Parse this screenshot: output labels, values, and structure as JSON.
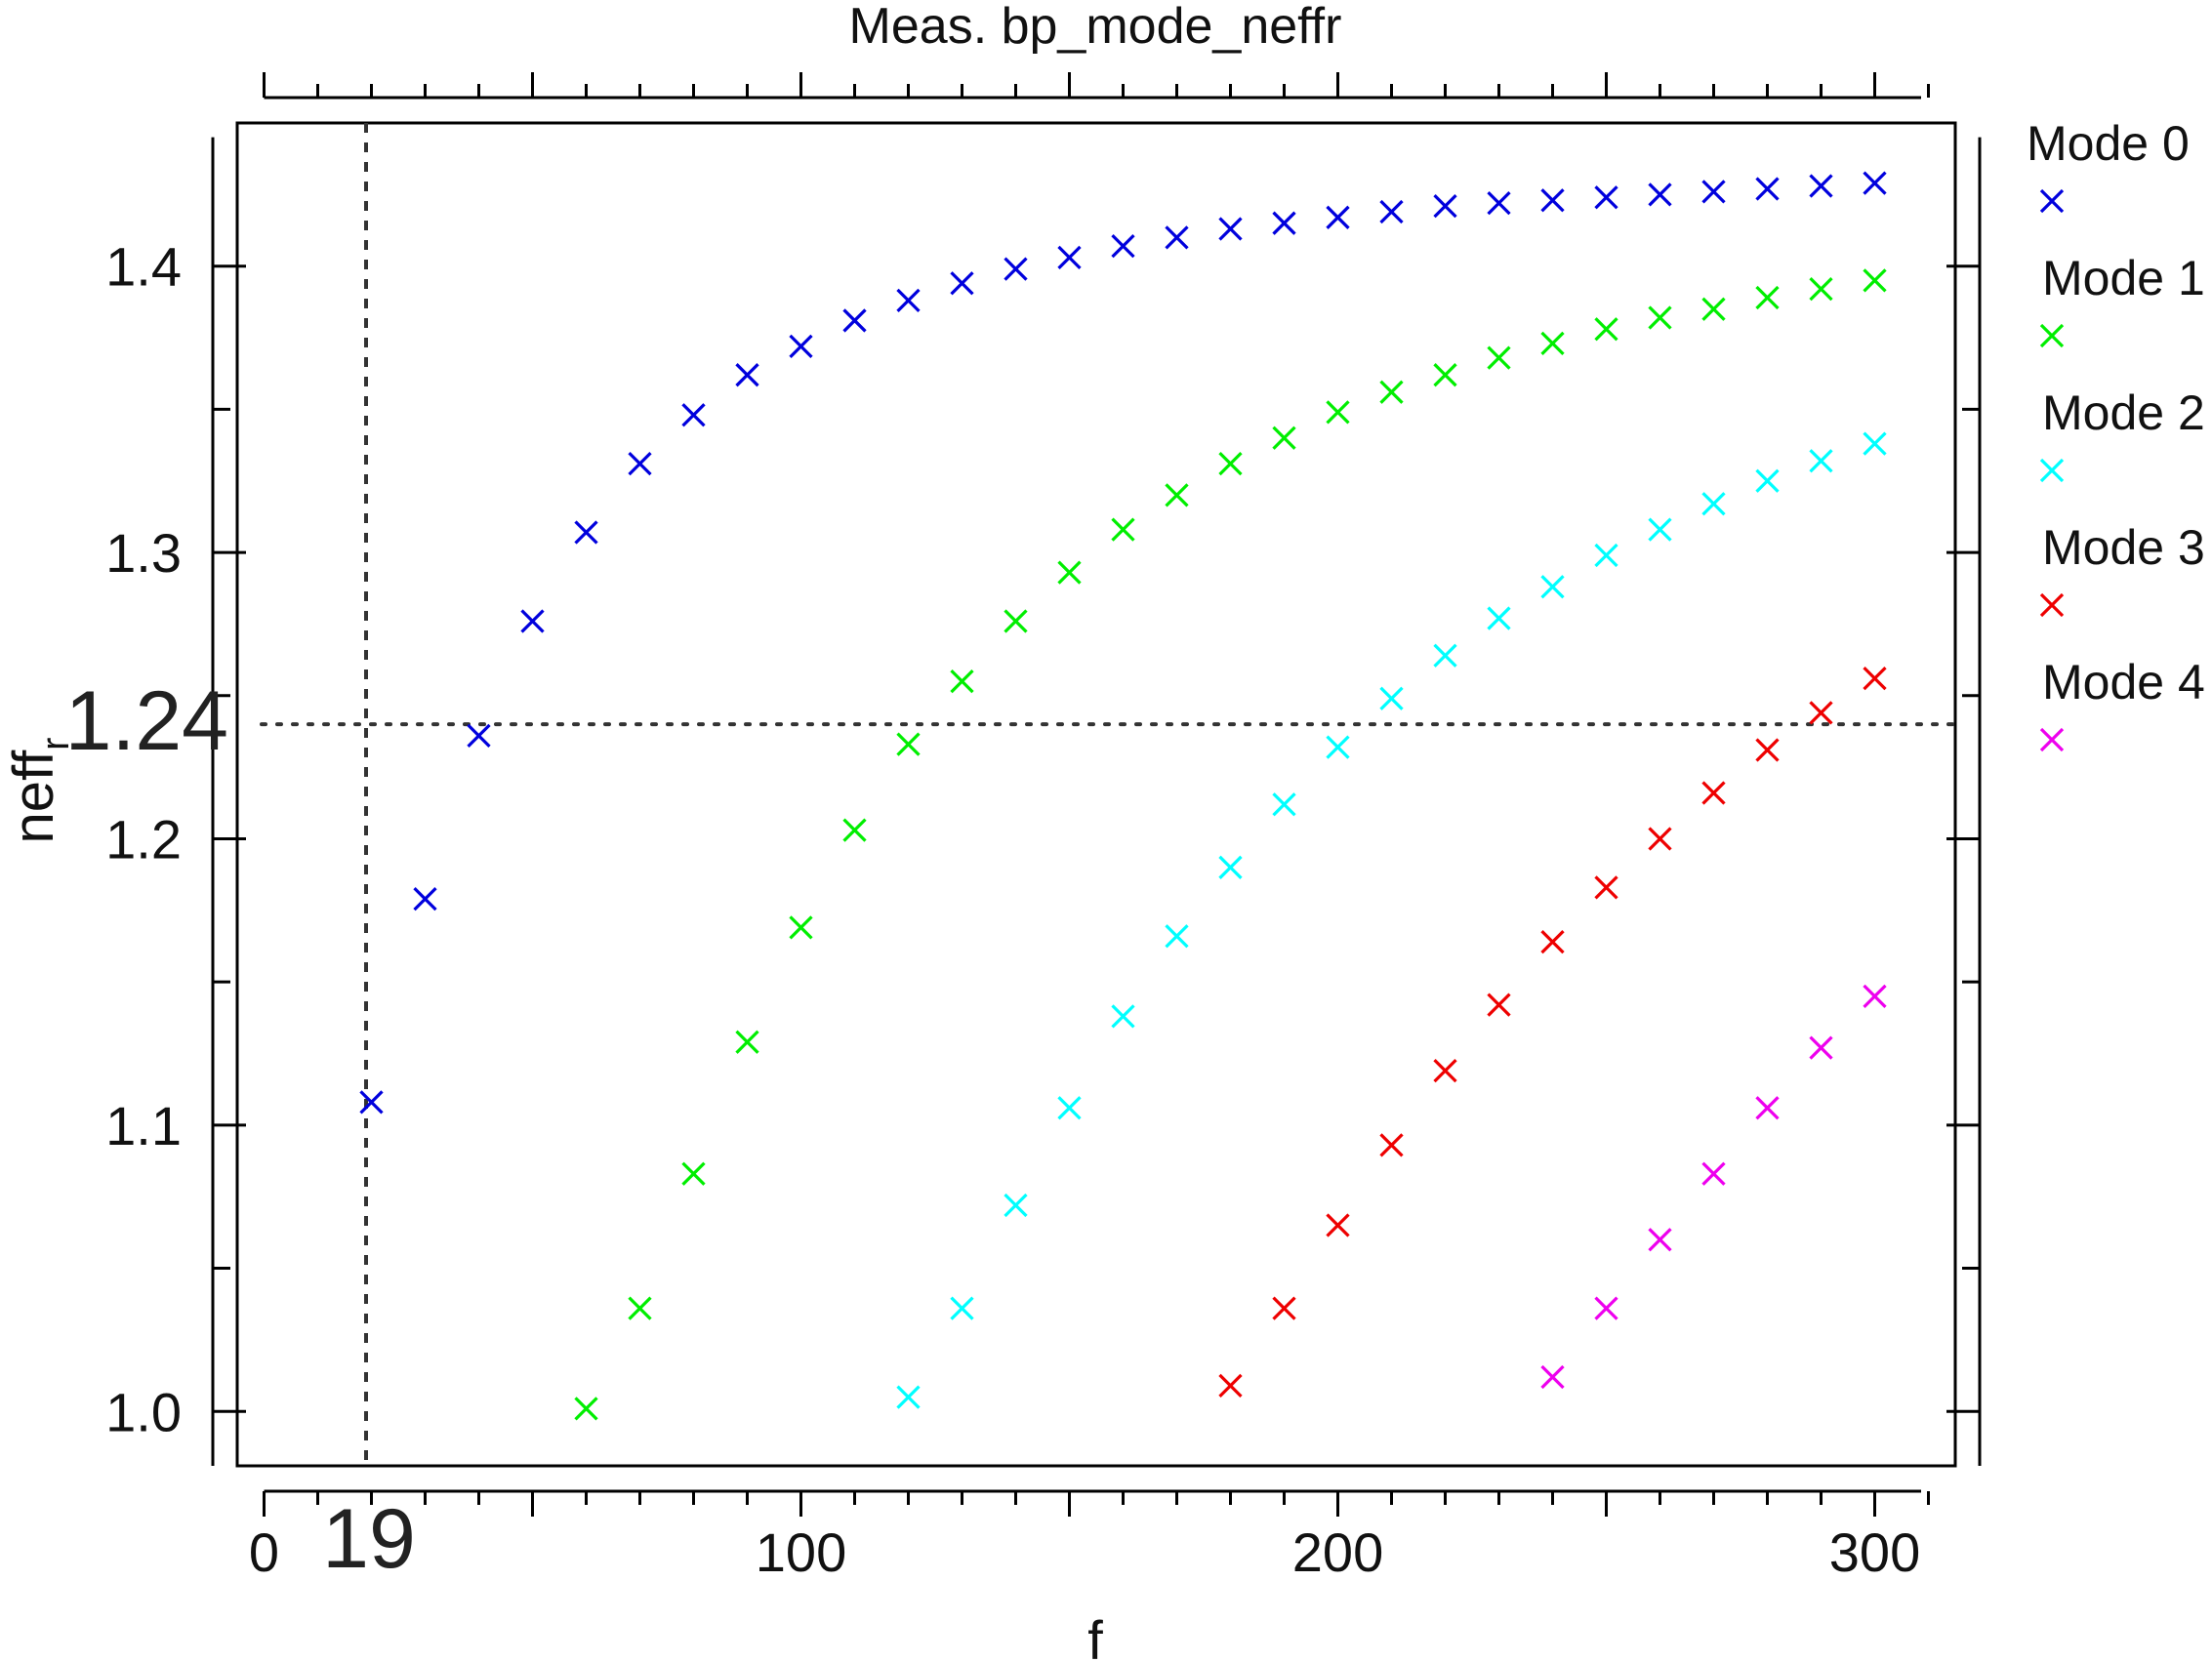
{
  "chart_data": {
    "type": "scatter",
    "title": "Meas. bp_mode_neffr",
    "xlabel": "f",
    "ylabel_main": "neff",
    "ylabel_sub": "r",
    "xlim": [
      -5,
      315
    ],
    "ylim": [
      0.981,
      1.45
    ],
    "x_ticks": [
      0,
      100,
      200,
      300
    ],
    "y_ticks": [
      1.0,
      1.1,
      1.2,
      1.3,
      1.4
    ],
    "y_tick_labels": [
      "1.0",
      "1.1",
      "1.2",
      "1.3",
      "1.4"
    ],
    "grid": false,
    "legend_position": "right",
    "marker": "x",
    "cursors": {
      "x": {
        "value": 19,
        "label": "19"
      },
      "y": {
        "value": 1.24,
        "label": "1.24"
      }
    },
    "series": [
      {
        "name": "Mode 0",
        "color": "#0000dd",
        "points": [
          [
            20,
            1.108
          ],
          [
            30,
            1.179
          ],
          [
            40,
            1.236
          ],
          [
            50,
            1.276
          ],
          [
            60,
            1.307
          ],
          [
            70,
            1.331
          ],
          [
            80,
            1.348
          ],
          [
            90,
            1.362
          ],
          [
            100,
            1.372
          ],
          [
            110,
            1.381
          ],
          [
            120,
            1.388
          ],
          [
            130,
            1.394
          ],
          [
            140,
            1.399
          ],
          [
            150,
            1.403
          ],
          [
            160,
            1.407
          ],
          [
            170,
            1.41
          ],
          [
            180,
            1.413
          ],
          [
            190,
            1.415
          ],
          [
            200,
            1.417
          ],
          [
            210,
            1.419
          ],
          [
            220,
            1.421
          ],
          [
            230,
            1.422
          ],
          [
            240,
            1.423
          ],
          [
            250,
            1.424
          ],
          [
            260,
            1.425
          ],
          [
            270,
            1.426
          ],
          [
            280,
            1.427
          ],
          [
            290,
            1.428
          ],
          [
            300,
            1.429
          ]
        ]
      },
      {
        "name": "Mode 1",
        "color": "#00ee00",
        "points": [
          [
            60,
            1.001
          ],
          [
            70,
            1.036
          ],
          [
            80,
            1.083
          ],
          [
            90,
            1.129
          ],
          [
            100,
            1.169
          ],
          [
            110,
            1.203
          ],
          [
            120,
            1.233
          ],
          [
            130,
            1.255
          ],
          [
            140,
            1.276
          ],
          [
            150,
            1.293
          ],
          [
            160,
            1.308
          ],
          [
            170,
            1.32
          ],
          [
            180,
            1.331
          ],
          [
            190,
            1.34
          ],
          [
            200,
            1.349
          ],
          [
            210,
            1.356
          ],
          [
            220,
            1.362
          ],
          [
            230,
            1.368
          ],
          [
            240,
            1.373
          ],
          [
            250,
            1.378
          ],
          [
            260,
            1.382
          ],
          [
            270,
            1.385
          ],
          [
            280,
            1.389
          ],
          [
            290,
            1.392
          ],
          [
            300,
            1.395
          ]
        ]
      },
      {
        "name": "Mode 2",
        "color": "#00ffff",
        "points": [
          [
            120,
            1.005
          ],
          [
            130,
            1.036
          ],
          [
            140,
            1.072
          ],
          [
            150,
            1.106
          ],
          [
            160,
            1.138
          ],
          [
            170,
            1.166
          ],
          [
            180,
            1.19
          ],
          [
            190,
            1.212
          ],
          [
            200,
            1.232
          ],
          [
            210,
            1.249
          ],
          [
            220,
            1.264
          ],
          [
            230,
            1.277
          ],
          [
            240,
            1.288
          ],
          [
            250,
            1.299
          ],
          [
            260,
            1.308
          ],
          [
            270,
            1.317
          ],
          [
            280,
            1.325
          ],
          [
            290,
            1.332
          ],
          [
            300,
            1.338
          ]
        ]
      },
      {
        "name": "Mode 3",
        "color": "#ee0000",
        "points": [
          [
            180,
            1.009
          ],
          [
            190,
            1.036
          ],
          [
            200,
            1.065
          ],
          [
            210,
            1.093
          ],
          [
            220,
            1.119
          ],
          [
            230,
            1.142
          ],
          [
            240,
            1.164
          ],
          [
            250,
            1.183
          ],
          [
            260,
            1.2
          ],
          [
            270,
            1.216
          ],
          [
            280,
            1.231
          ],
          [
            290,
            1.244
          ],
          [
            300,
            1.256
          ]
        ]
      },
      {
        "name": "Mode 4",
        "color": "#ee00ee",
        "points": [
          [
            240,
            1.012
          ],
          [
            250,
            1.036
          ],
          [
            260,
            1.06
          ],
          [
            270,
            1.083
          ],
          [
            280,
            1.106
          ],
          [
            290,
            1.127
          ],
          [
            300,
            1.145
          ]
        ]
      }
    ]
  }
}
